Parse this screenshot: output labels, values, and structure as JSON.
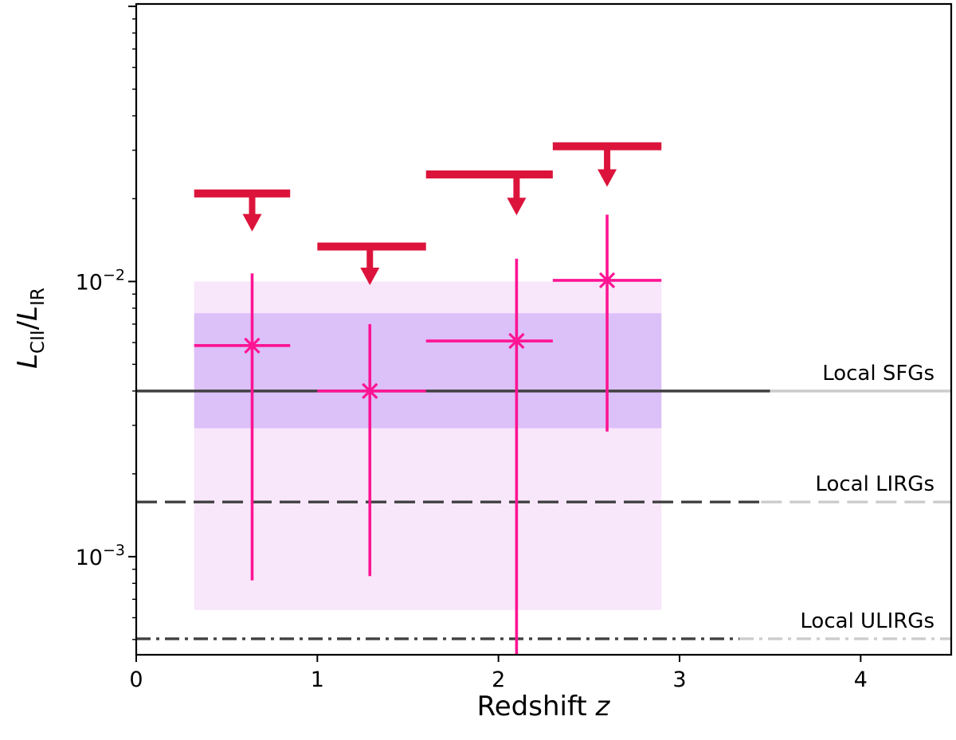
{
  "chart_data": {
    "type": "scatter",
    "xlabel": {
      "text": "Redshift ",
      "var": "z"
    },
    "ylabel": {
      "L1": "L",
      "sub1": "CII",
      "slash": "/",
      "L2": "L",
      "sub2": "IR"
    },
    "xlim": [
      0,
      4.5
    ],
    "ylim": [
      0.00044,
      0.102
    ],
    "yscale": "log",
    "x_ticks": [
      0,
      1,
      2,
      3,
      4
    ],
    "x_tick_labels": [
      "0",
      "1",
      "2",
      "3",
      "4"
    ],
    "y_major_ticks": [
      {
        "value": 0.001,
        "base": "10",
        "exp": "−3"
      },
      {
        "value": 0.01,
        "base": "10",
        "exp": "−2"
      }
    ],
    "colors": {
      "points": "#ff1493",
      "upper_limits": "#dc143c",
      "band_outer": "#f8e6fb",
      "band_inner": "#dcc0f8",
      "ref_dark": "#404040",
      "ref_light": "#cccccc"
    },
    "bands": [
      {
        "name": "outer-band",
        "x": [
          0.32,
          2.9
        ],
        "y": [
          0.00064,
          0.01
        ]
      },
      {
        "name": "inner-band",
        "x": [
          0.32,
          2.9
        ],
        "y": [
          0.00293,
          0.00767
        ]
      }
    ],
    "reference_lines": [
      {
        "name": "local-sfgs",
        "label": "Local SFGs",
        "y": 0.004,
        "style": "solid",
        "x_dark_end": 3.5
      },
      {
        "name": "local-lirgs",
        "label": "Local LIRGs",
        "y": 0.00158,
        "style": "dashed",
        "x_dark_end": 3.45
      },
      {
        "name": "local-ulirgs",
        "label": "Local ULIRGs",
        "y": 0.000503,
        "style": "dashdot",
        "x_dark_end": 3.33
      }
    ],
    "points": [
      {
        "x": 0.64,
        "y": 0.00585,
        "xerr": [
          0.32,
          0.85
        ],
        "yerr": [
          0.00082,
          0.0107
        ]
      },
      {
        "x": 1.29,
        "y": 0.004,
        "xerr": [
          1.0,
          1.6
        ],
        "yerr": [
          0.00085,
          0.007
        ]
      },
      {
        "x": 2.1,
        "y": 0.00608,
        "xerr": [
          1.6,
          2.3
        ],
        "yerr": [
          0.00044,
          0.0121
        ]
      },
      {
        "x": 2.6,
        "y": 0.0101,
        "xerr": [
          2.3,
          2.9
        ],
        "yerr": [
          0.00285,
          0.0175
        ]
      }
    ],
    "upper_limits": [
      {
        "x": 0.64,
        "y": 0.0209,
        "xrange": [
          0.32,
          0.85
        ],
        "arrow_tip": 0.0152
      },
      {
        "x": 1.29,
        "y": 0.0134,
        "xrange": [
          1.0,
          1.6
        ],
        "arrow_tip": 0.0097
      },
      {
        "x": 2.1,
        "y": 0.0245,
        "xrange": [
          1.6,
          2.3
        ],
        "arrow_tip": 0.0174
      },
      {
        "x": 2.6,
        "y": 0.031,
        "xrange": [
          2.3,
          2.9
        ],
        "arrow_tip": 0.0221
      }
    ]
  }
}
